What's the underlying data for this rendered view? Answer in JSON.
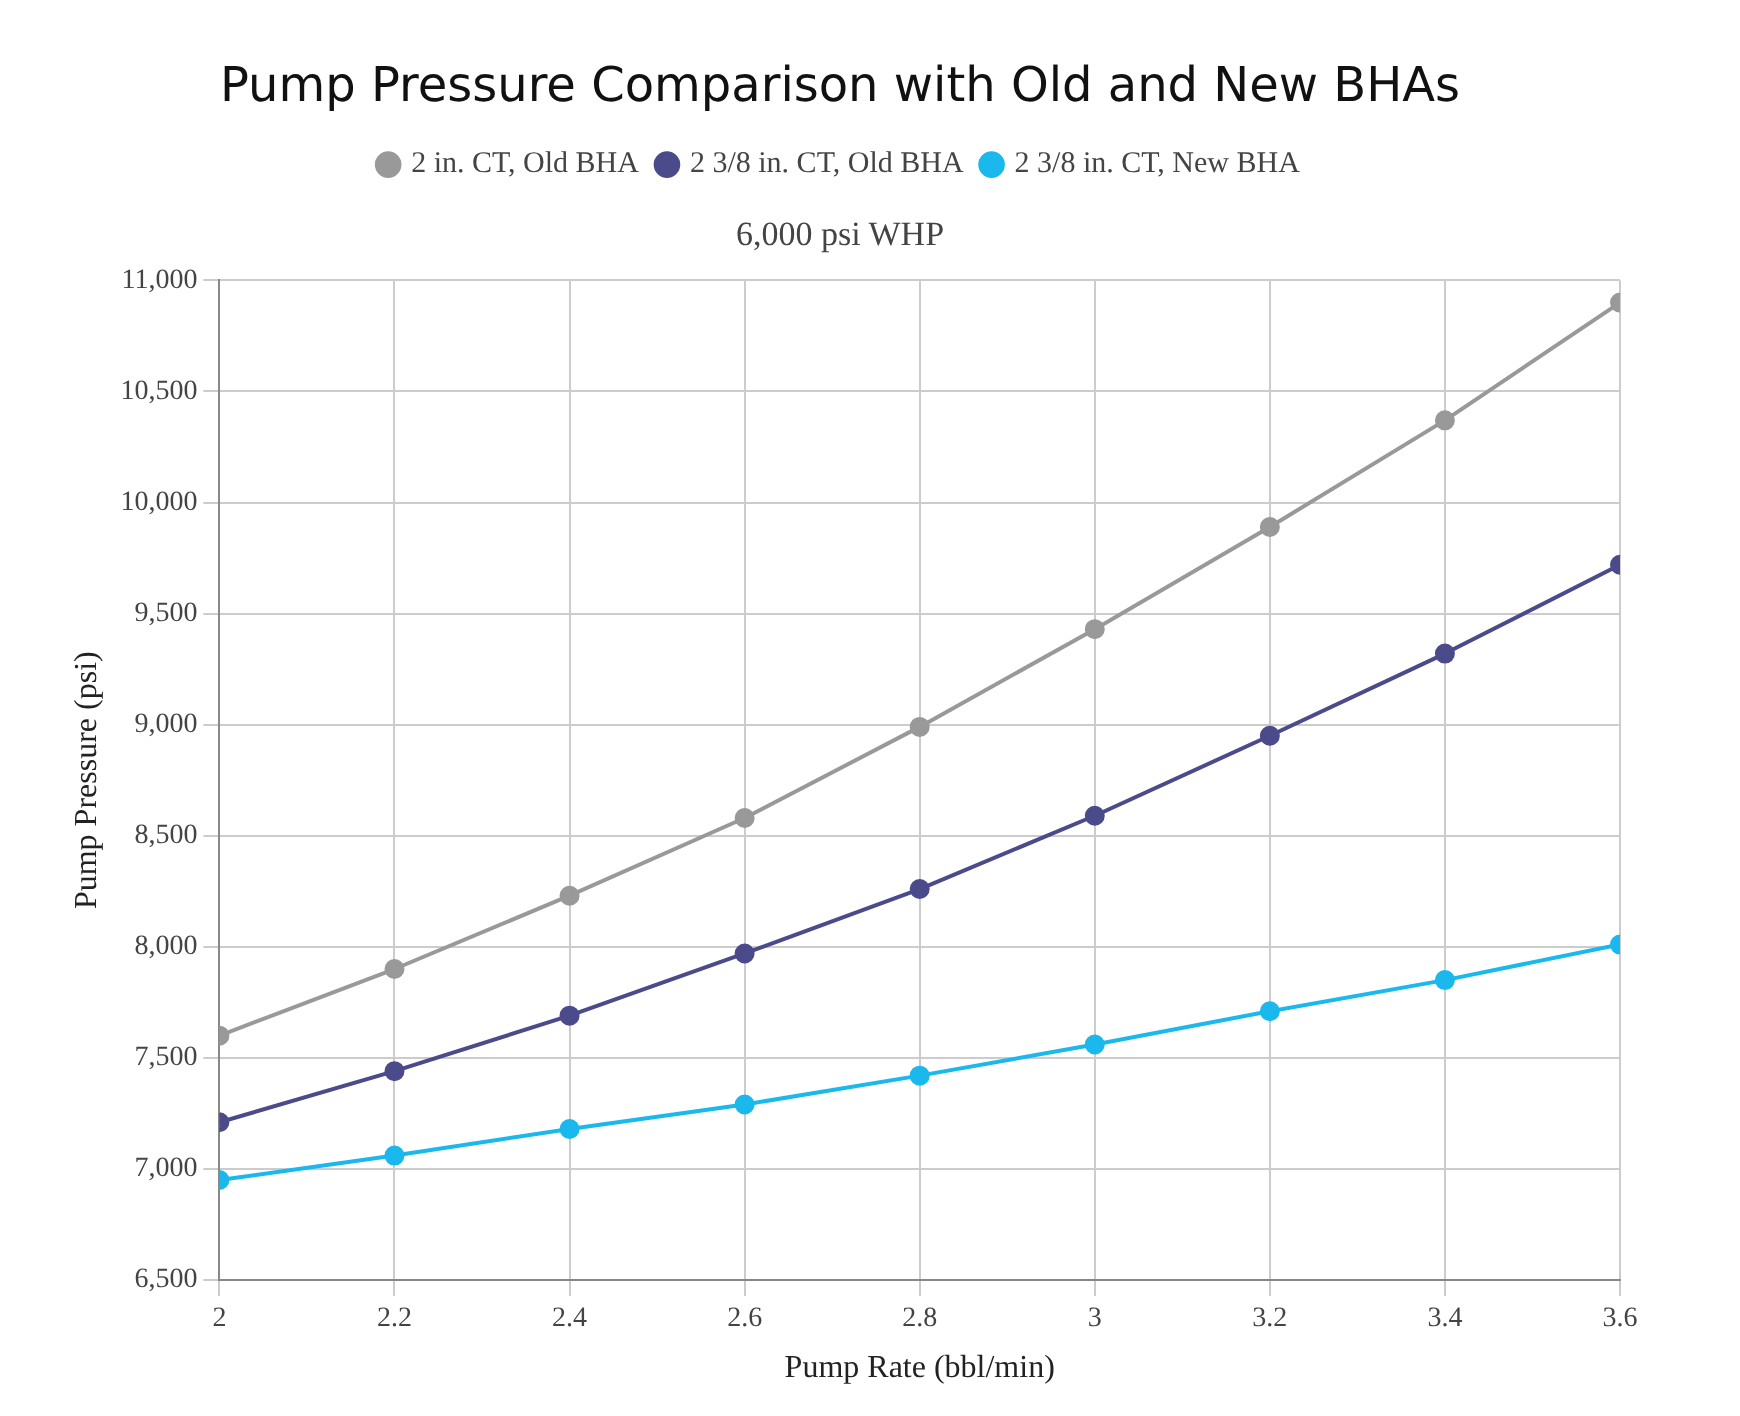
{
  "chart_data": {
    "type": "line",
    "title": "Pump Pressure Comparison with Old and New BHAs",
    "subtitle": "6,000 psi WHP",
    "xlabel": "Pump Rate (bbl/min)",
    "ylabel": "Pump Pressure (psi)",
    "x": [
      2,
      2.2,
      2.4,
      2.6,
      2.8,
      3,
      3.2,
      3.4,
      3.6
    ],
    "series": [
      {
        "name": "2 in. CT, Old BHA",
        "color": "#999999",
        "values": [
          7600,
          7900,
          8230,
          8580,
          8990,
          9430,
          9890,
          10370,
          10900
        ]
      },
      {
        "name": "2 3/8 in. CT, Old BHA",
        "color": "#4b4a8a",
        "values": [
          7210,
          7440,
          7690,
          7970,
          8260,
          8590,
          8950,
          9320,
          9720
        ]
      },
      {
        "name": "2 3/8 in. CT, New BHA",
        "color": "#1ab8ec",
        "values": [
          6950,
          7060,
          7180,
          7290,
          7420,
          7560,
          7710,
          7850,
          8010
        ]
      }
    ],
    "xlim": [
      2,
      3.6
    ],
    "xticks": [
      2,
      2.2,
      2.4,
      2.6,
      2.8,
      3,
      3.2,
      3.4,
      3.6
    ],
    "ylim": [
      6500,
      11000
    ],
    "yticks": [
      {
        "value": 6500,
        "label": "6,500"
      },
      {
        "value": 7000,
        "label": "7,000"
      },
      {
        "value": 7500,
        "label": "7,500"
      },
      {
        "value": 8000,
        "label": "8,000"
      },
      {
        "value": 8500,
        "label": "8,500"
      },
      {
        "value": 9000,
        "label": "9,000"
      },
      {
        "value": 9500,
        "label": "9,500"
      },
      {
        "value": 10000,
        "label": "10,000"
      },
      {
        "value": 10500,
        "label": "10,500"
      },
      {
        "value": 11000,
        "label": "11,000"
      }
    ],
    "grid": true,
    "legend": "top",
    "marker": "circle",
    "line_style": "solid"
  }
}
